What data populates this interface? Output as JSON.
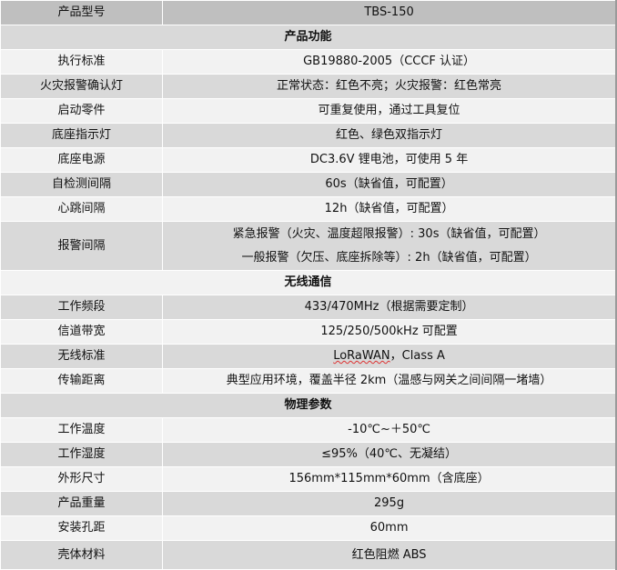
{
  "header": {
    "label": "产品型号",
    "value": "TBS-150"
  },
  "rows": [
    {
      "section": "产品功能"
    },
    {
      "label": "执行标准",
      "value": "GB19880-2005（CCCF 认证）"
    },
    {
      "label": "火灾报警确认灯",
      "value": "正常状态：红色不亮；火灾报警：红色常亮"
    },
    {
      "label": "启动零件",
      "value": "可重复使用，通过工具复位"
    },
    {
      "label": "底座指示灯",
      "value": "红色、绿色双指示灯"
    },
    {
      "label": "底座电源",
      "value": "DC3.6V 锂电池，可使用 5 年"
    },
    {
      "label": "自检测间隔",
      "value": "60s（缺省值，可配置）"
    },
    {
      "label": "心跳间隔",
      "value": "12h（缺省值，可配置）"
    },
    {
      "label": "报警间隔",
      "lines": [
        "紧急报警（火灾、温度超限报警）: 30s（缺省值，可配置）",
        "一般报警（欠压、底座拆除等）: 2h（缺省值，可配置）"
      ]
    },
    {
      "section": "无线通信"
    },
    {
      "label": "工作频段",
      "value": "433/470MHz（根据需要定制）"
    },
    {
      "label": "信道带宽",
      "value": "125/250/500kHz 可配置"
    },
    {
      "label": "无线标准",
      "value_marked": "LoRaWAN",
      "value": "，Class A"
    },
    {
      "label": "传输距离",
      "value": "典型应用环境，覆盖半径 2km（温感与网关之间间隔一堵墙）"
    },
    {
      "section": "物理参数"
    },
    {
      "label": "工作温度",
      "value": "-10℃~＋50℃"
    },
    {
      "label": "工作湿度",
      "value": "≤95%（40℃、无凝结）"
    },
    {
      "label": "外形尺寸",
      "value": "156mm*115mm*60mm（含底座）"
    },
    {
      "label": "产品重量",
      "value": "295g"
    },
    {
      "label": "安装孔距",
      "value": "60mm"
    },
    {
      "label": "壳体材料",
      "value": "红色阻燃 ABS"
    }
  ]
}
